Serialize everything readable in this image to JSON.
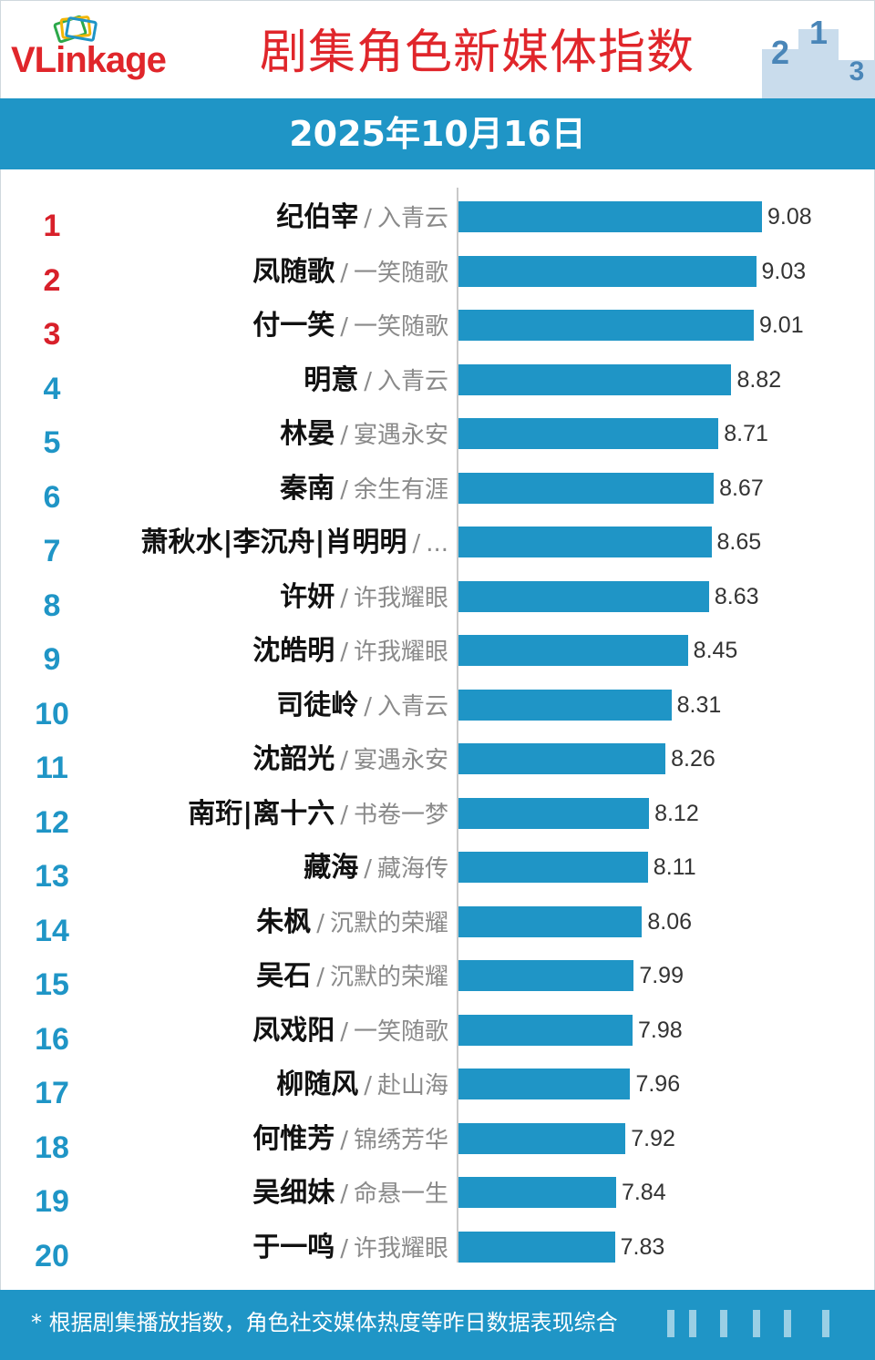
{
  "brand": {
    "name": "VLinkage"
  },
  "title": "剧集角色新媒体指数",
  "date": "2025年10月16日",
  "colors": {
    "accent": "#1f95c6",
    "title_red": "#e0262b",
    "top_rank": "#d8202a",
    "rank_blue": "#1f95c6"
  },
  "chart_data": {
    "type": "bar",
    "orientation": "horizontal",
    "title": "剧集角色新媒体指数",
    "subtitle": "2025年10月16日",
    "xlim": [
      6.5,
      9.3
    ],
    "separator": "/",
    "rows": [
      {
        "rank": "1",
        "name": "纪伯宰",
        "show": "入青云",
        "value": 9.08
      },
      {
        "rank": "2",
        "name": "凤随歌",
        "show": "一笑随歌",
        "value": 9.03
      },
      {
        "rank": "3",
        "name": "付一笑",
        "show": "一笑随歌",
        "value": 9.01
      },
      {
        "rank": "4",
        "name": "明意",
        "show": "入青云",
        "value": 8.82
      },
      {
        "rank": "5",
        "name": "林晏",
        "show": "宴遇永安",
        "value": 8.71
      },
      {
        "rank": "6",
        "name": "秦南",
        "show": "余生有涯",
        "value": 8.67
      },
      {
        "rank": "7",
        "name": "萧秋水|李沉舟|肖明明",
        "show": "...",
        "value": 8.65
      },
      {
        "rank": "8",
        "name": "许妍",
        "show": "许我耀眼",
        "value": 8.63
      },
      {
        "rank": "9",
        "name": "沈皓明",
        "show": "许我耀眼",
        "value": 8.45
      },
      {
        "rank": "10",
        "name": "司徒岭",
        "show": "入青云",
        "value": 8.31
      },
      {
        "rank": "11",
        "name": "沈韶光",
        "show": "宴遇永安",
        "value": 8.26
      },
      {
        "rank": "12",
        "name": "南珩|离十六",
        "show": "书卷一梦",
        "value": 8.12
      },
      {
        "rank": "13",
        "name": "藏海",
        "show": "藏海传",
        "value": 8.11
      },
      {
        "rank": "14",
        "name": "朱枫",
        "show": "沉默的荣耀",
        "value": 8.06
      },
      {
        "rank": "15",
        "name": "吴石",
        "show": "沉默的荣耀",
        "value": 7.99
      },
      {
        "rank": "16",
        "name": "凤戏阳",
        "show": "一笑随歌",
        "value": 7.98
      },
      {
        "rank": "17",
        "name": "柳随风",
        "show": "赴山海",
        "value": 7.96
      },
      {
        "rank": "18",
        "name": "何惟芳",
        "show": "锦绣芳华",
        "value": 7.92
      },
      {
        "rank": "19",
        "name": "吴细妹",
        "show": "命悬一生",
        "value": 7.84
      },
      {
        "rank": "20",
        "name": "于一鸣",
        "show": "许我耀眼",
        "value": 7.83
      }
    ]
  },
  "footer": {
    "note": "* 根据剧集播放指数，角色社交媒体热度等昨日数据表现综合"
  }
}
